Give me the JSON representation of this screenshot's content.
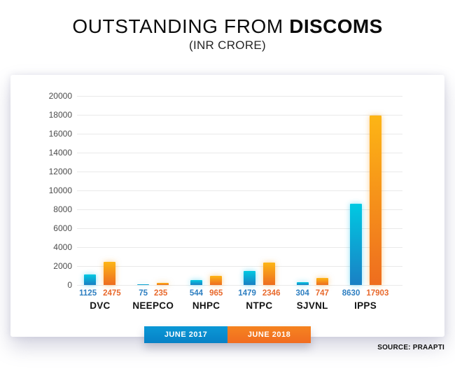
{
  "header": {
    "title_regular": "OUTSTANDING FROM ",
    "title_bold": "DISCOMS",
    "subtitle": "(INR CRORE)"
  },
  "footer": {
    "source": "SOURCE: PRAAPTI"
  },
  "colors": {
    "blue_bar_top": "#00c9e2",
    "blue_bar_bottom": "#1a80c4",
    "orange_bar_top": "#fdb515",
    "orange_bar_bottom": "#ee6d1f",
    "gridline": "#e9e9e9",
    "axis_text": "#4c4c4c"
  },
  "chart_data": {
    "type": "bar",
    "title": "OUTSTANDING FROM DISCOMS",
    "subtitle": "(INR CRORE)",
    "categories": [
      "DVC",
      "NEEPCO",
      "NHPC",
      "NTPC",
      "SJVNL",
      "IPPS"
    ],
    "series": [
      {
        "name": "JUNE 2017",
        "values": [
          1125,
          75,
          544,
          1479,
          304,
          8630
        ],
        "color_top": "#00c9e2",
        "color_bottom": "#1a80c4",
        "glow": "rgba(0,190,235,0.45)",
        "label_color": "#2e7fc1",
        "legend_top": "#0b98d6",
        "legend_bottom": "#0781c6"
      },
      {
        "name": "JUNE 2018",
        "values": [
          2475,
          235,
          965,
          2346,
          747,
          17903
        ],
        "color_top": "#fdb515",
        "color_bottom": "#ee6d1f",
        "glow": "rgba(250,160,30,0.5)",
        "label_color": "#e8692c",
        "legend_top": "#f5831f",
        "legend_bottom": "#f16c21"
      }
    ],
    "ylim": [
      0,
      20000
    ],
    "ytick_step": 2000,
    "grid": true,
    "legend_position": "bottom",
    "source": "SOURCE: PRAAPTI"
  }
}
